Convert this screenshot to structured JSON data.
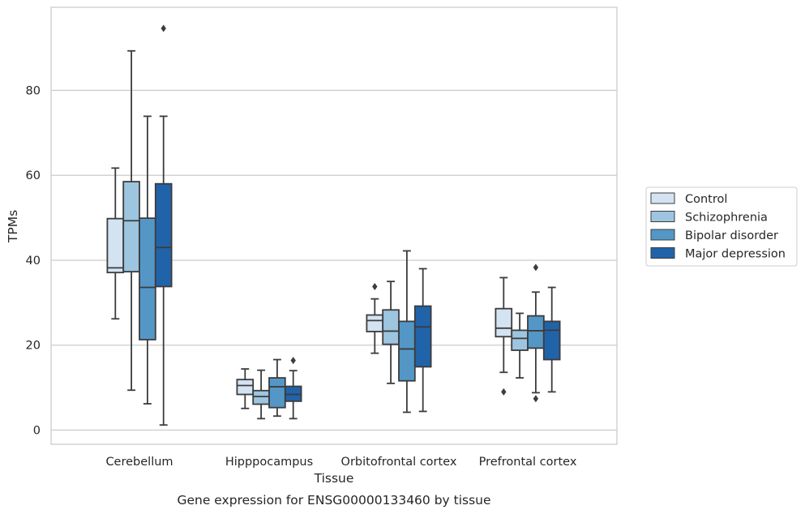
{
  "caption": "Gene expression for ENSG00000133460 by tissue",
  "chart_data": {
    "type": "box",
    "xlabel": "Tissue",
    "ylabel": "TPMs",
    "ylim": [
      -3.2,
      99.5
    ],
    "yticks": [
      0,
      20,
      40,
      60,
      80
    ],
    "grid": true,
    "legend_position": "right",
    "categories": [
      "Cerebellum",
      "Hipppocampus",
      "Orbitofrontal cortex",
      "Prefrontal cortex"
    ],
    "series": [
      {
        "name": "Control",
        "color": "#d4e3f2",
        "boxes": [
          {
            "whislo": 26.2,
            "q1": 37.1,
            "med": 38.2,
            "q3": 49.8,
            "whishi": 61.7,
            "fliers": []
          },
          {
            "whislo": 5.1,
            "q1": 8.4,
            "med": 10.5,
            "q3": 11.9,
            "whishi": 14.4,
            "fliers": []
          },
          {
            "whislo": 18.1,
            "q1": 23.2,
            "med": 25.8,
            "q3": 27.1,
            "whishi": 30.9,
            "fliers": [
              33.8
            ]
          },
          {
            "whislo": 13.6,
            "q1": 22.0,
            "med": 24.0,
            "q3": 28.6,
            "whishi": 35.9,
            "fliers": [
              9.0
            ]
          }
        ]
      },
      {
        "name": "Schizophrenia",
        "color": "#9dc5e0",
        "boxes": [
          {
            "whislo": 9.4,
            "q1": 37.3,
            "med": 49.3,
            "q3": 58.5,
            "whishi": 89.3,
            "fliers": []
          },
          {
            "whislo": 2.7,
            "q1": 6.1,
            "med": 7.9,
            "q3": 9.3,
            "whishi": 14.1,
            "fliers": []
          },
          {
            "whislo": 11.0,
            "q1": 20.2,
            "med": 23.3,
            "q3": 28.3,
            "whishi": 35.0,
            "fliers": []
          },
          {
            "whislo": 12.3,
            "q1": 18.8,
            "med": 21.6,
            "q3": 23.5,
            "whishi": 27.5,
            "fliers": []
          }
        ]
      },
      {
        "name": "Bipolar disorder",
        "color": "#5497c7",
        "boxes": [
          {
            "whislo": 6.2,
            "q1": 21.3,
            "med": 33.6,
            "q3": 49.9,
            "whishi": 73.9,
            "fliers": []
          },
          {
            "whislo": 3.3,
            "q1": 5.3,
            "med": 10.2,
            "q3": 12.3,
            "whishi": 16.6,
            "fliers": []
          },
          {
            "whislo": 4.2,
            "q1": 11.6,
            "med": 19.1,
            "q3": 25.6,
            "whishi": 42.2,
            "fliers": []
          },
          {
            "whislo": 8.8,
            "q1": 19.3,
            "med": 23.4,
            "q3": 26.9,
            "whishi": 32.5,
            "fliers": [
              7.4,
              38.3
            ]
          }
        ]
      },
      {
        "name": "Major depression",
        "color": "#2163a9",
        "boxes": [
          {
            "whislo": 1.2,
            "q1": 33.8,
            "med": 43.0,
            "q3": 58.0,
            "whishi": 73.9,
            "fliers": [
              94.6
            ]
          },
          {
            "whislo": 2.7,
            "q1": 6.8,
            "med": 8.4,
            "q3": 10.3,
            "whishi": 14.0,
            "fliers": [
              16.4
            ]
          },
          {
            "whislo": 4.4,
            "q1": 14.9,
            "med": 24.3,
            "q3": 29.2,
            "whishi": 38.0,
            "fliers": []
          },
          {
            "whislo": 9.0,
            "q1": 16.6,
            "med": 23.5,
            "q3": 25.6,
            "whishi": 33.6,
            "fliers": []
          }
        ]
      }
    ]
  }
}
